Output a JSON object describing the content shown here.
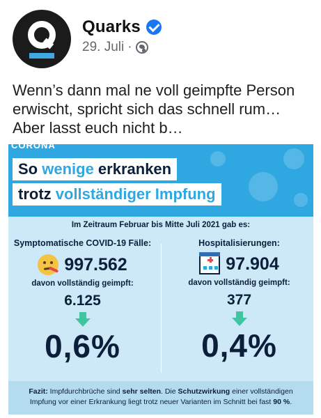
{
  "post": {
    "page_name": "Quarks",
    "date": "29. Juli",
    "separator": "·",
    "text": "Wenn’s dann mal ne voll geimpfte Person erwischt, spricht sich das schnell rum… Aber lasst euch nicht b…"
  },
  "avatar": {
    "letter": "Q"
  },
  "infographic": {
    "tag": "CORONA",
    "title_line1_pre": "So ",
    "title_line1_accent": "wenige",
    "title_line1_post": " erkranken",
    "title_line2_pre": "trotz ",
    "title_line2_accent": "vollständiger Impfung",
    "period": "Im Zeitraum Februar bis Mitte Juli 2021 gab es:",
    "left": {
      "heading": "Symptomatische COVID-19 Fälle:",
      "total": "997.562",
      "sub_label": "davon vollständig geimpft:",
      "vaccinated": "6.125",
      "percent": "0,6%",
      "icon": "sick-face-icon"
    },
    "right": {
      "heading": "Hospitalisierungen:",
      "total": "97.904",
      "sub_label": "davon vollständig geimpft:",
      "vaccinated": "377",
      "percent": "0,4%",
      "icon": "hospital-icon"
    },
    "fazit": {
      "label": "Fazit:",
      "t1": " Impfdurchbrüche sind ",
      "b1": "sehr selten",
      "t2": ". Die ",
      "b2": "Schutzwirkung",
      "t3": " einer vollständigen Impfung vor einer Erkrankung liegt trotz neuer Varianten im Schnitt bei fast ",
      "b3": "90 %",
      "t4": "."
    }
  },
  "colors": {
    "brand_blue": "#2fa8e1",
    "navy": "#0b1f3a",
    "arrow_green": "#3fc6a0",
    "panel_light": "#cde9f7",
    "verified_blue": "#1877f2"
  }
}
